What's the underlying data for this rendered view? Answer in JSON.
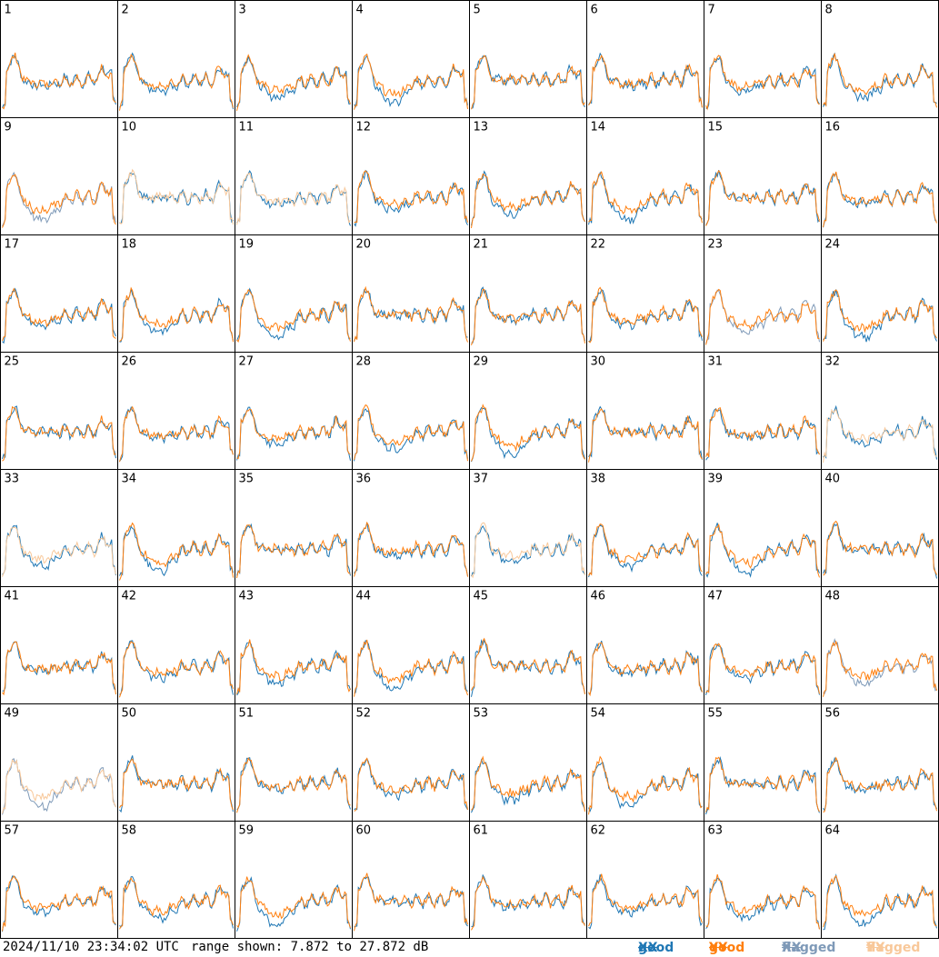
{
  "chart_data": {
    "type": "line",
    "description_of_layout": "8x8 small-multiples grid of antenna bandpass spectra",
    "panels": [
      1,
      2,
      3,
      4,
      5,
      6,
      7,
      8,
      9,
      10,
      11,
      12,
      13,
      14,
      15,
      16,
      17,
      18,
      19,
      20,
      21,
      22,
      23,
      24,
      25,
      26,
      27,
      28,
      29,
      30,
      31,
      32,
      33,
      34,
      35,
      36,
      37,
      38,
      39,
      40,
      41,
      42,
      43,
      44,
      45,
      46,
      47,
      48,
      49,
      50,
      51,
      52,
      53,
      54,
      55,
      56,
      57,
      58,
      59,
      60,
      61,
      62,
      63,
      64
    ],
    "flagged_xx": [
      9,
      23,
      48,
      49
    ],
    "flagged_yy": [
      10,
      11,
      32,
      33,
      37,
      49
    ],
    "ylim": [
      7.872,
      27.872
    ],
    "yunit": "dB",
    "series": [
      {
        "name": "good XX",
        "color": "#1f77b4"
      },
      {
        "name": "good YY",
        "color": "#ff7f0e"
      },
      {
        "name": "flagged XX",
        "color": "#7f9ab8"
      },
      {
        "name": "flagged YY",
        "color": "#f8c89a"
      }
    ]
  },
  "footer": {
    "timestamp": "2024/11/10 23:34:02 UTC",
    "range_text": "range shown: 7.872 to 27.872 dB"
  },
  "legend": {
    "good_label": "good ",
    "flagged_label": "flagged ",
    "xx": "XX",
    "yy": "YY",
    "colors": {
      "good_xx": "#1f77b4",
      "good_yy": "#ff7f0e",
      "flagged_xx": "#7f9ab8",
      "flagged_yy": "#f8c89a"
    }
  }
}
